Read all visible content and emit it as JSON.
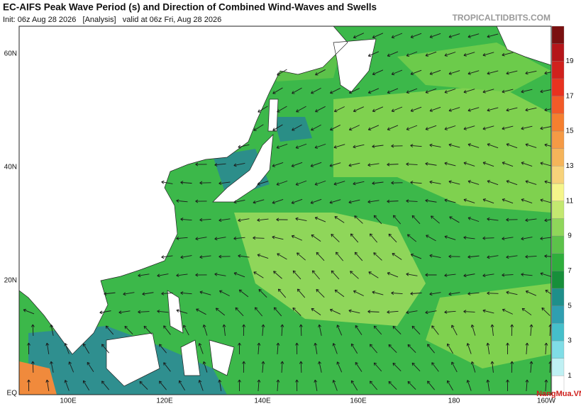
{
  "header": {
    "title": "EC-AIFS Peak Wave Period (s) and Direction of Combined Wind-Waves and Swells",
    "subtitle": "Init: 06z Aug 28 2026   [Analysis]   valid at 06z Fri, Aug 28 2026",
    "site": "TROPICALTIDBITS.COM"
  },
  "map": {
    "lat_labels": [
      "60N",
      "40N",
      "20N",
      "EQ"
    ],
    "lon_labels": [
      "100E",
      "120E",
      "140E",
      "160E",
      "180",
      "160W"
    ]
  },
  "colorbar": {
    "labels": [
      "1",
      "3",
      "5",
      "7",
      "9",
      "11",
      "13",
      "15",
      "17",
      "19"
    ]
  },
  "watermark": "NangMua.VN"
}
